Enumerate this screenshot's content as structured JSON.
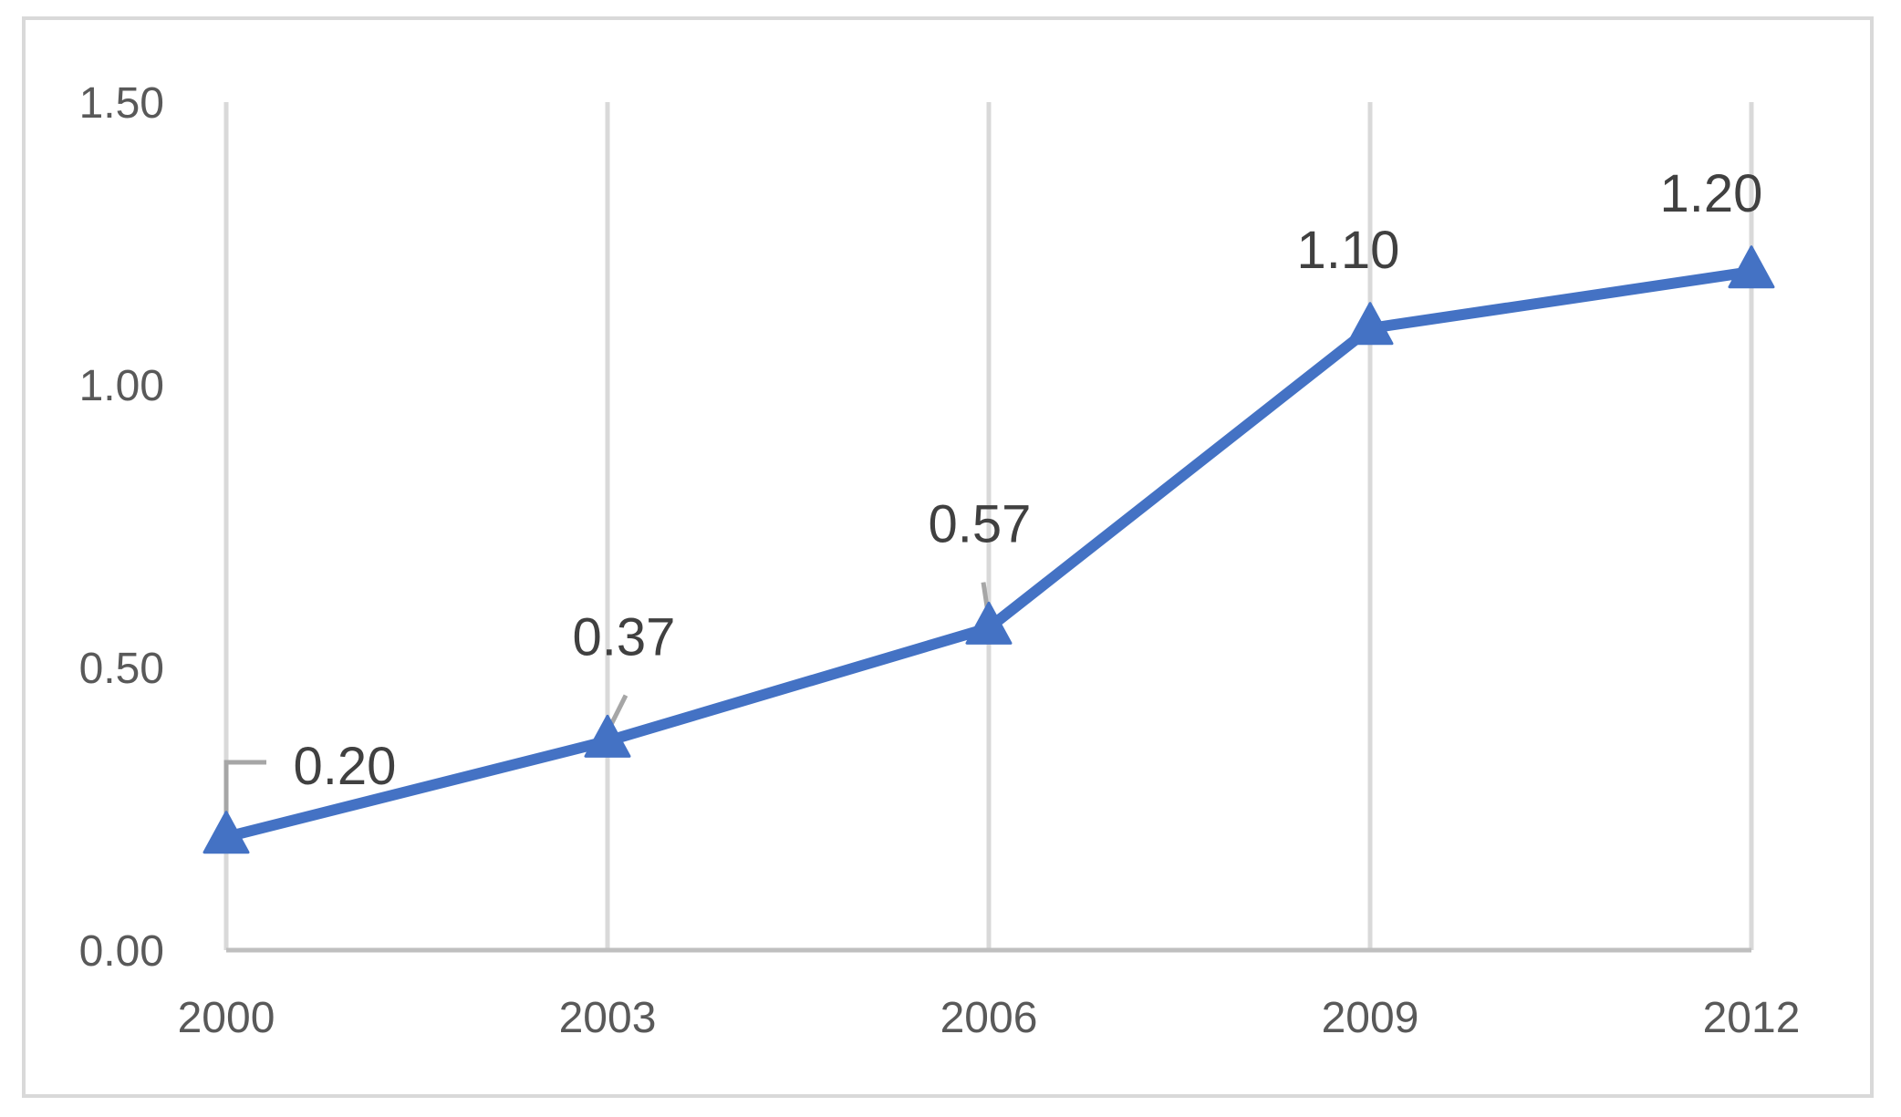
{
  "chart_data": {
    "type": "line",
    "title": "",
    "xlabel": "",
    "ylabel": "",
    "categories": [
      "2000",
      "2003",
      "2006",
      "2009",
      "2012"
    ],
    "series": [
      {
        "values": [
          0.2,
          0.37,
          0.57,
          1.1,
          1.2
        ],
        "data_labels": [
          "0.20",
          "0.37",
          "0.57",
          "1.10",
          "1.20"
        ]
      }
    ],
    "ylim": [
      0,
      1.5
    ],
    "y_ticks": [
      0,
      0.5,
      1.0,
      1.5
    ],
    "y_tick_labels": [
      "0.00",
      "0.50",
      "1.00",
      "1.50"
    ],
    "grid": "vertical",
    "legend": "none",
    "marker": "triangle",
    "colors": {
      "series": "#4472c4",
      "grid": "#d9d9d9",
      "axis": "#bfbfbf",
      "leader": "#a6a6a6",
      "frame": "#d9d9d9"
    }
  }
}
